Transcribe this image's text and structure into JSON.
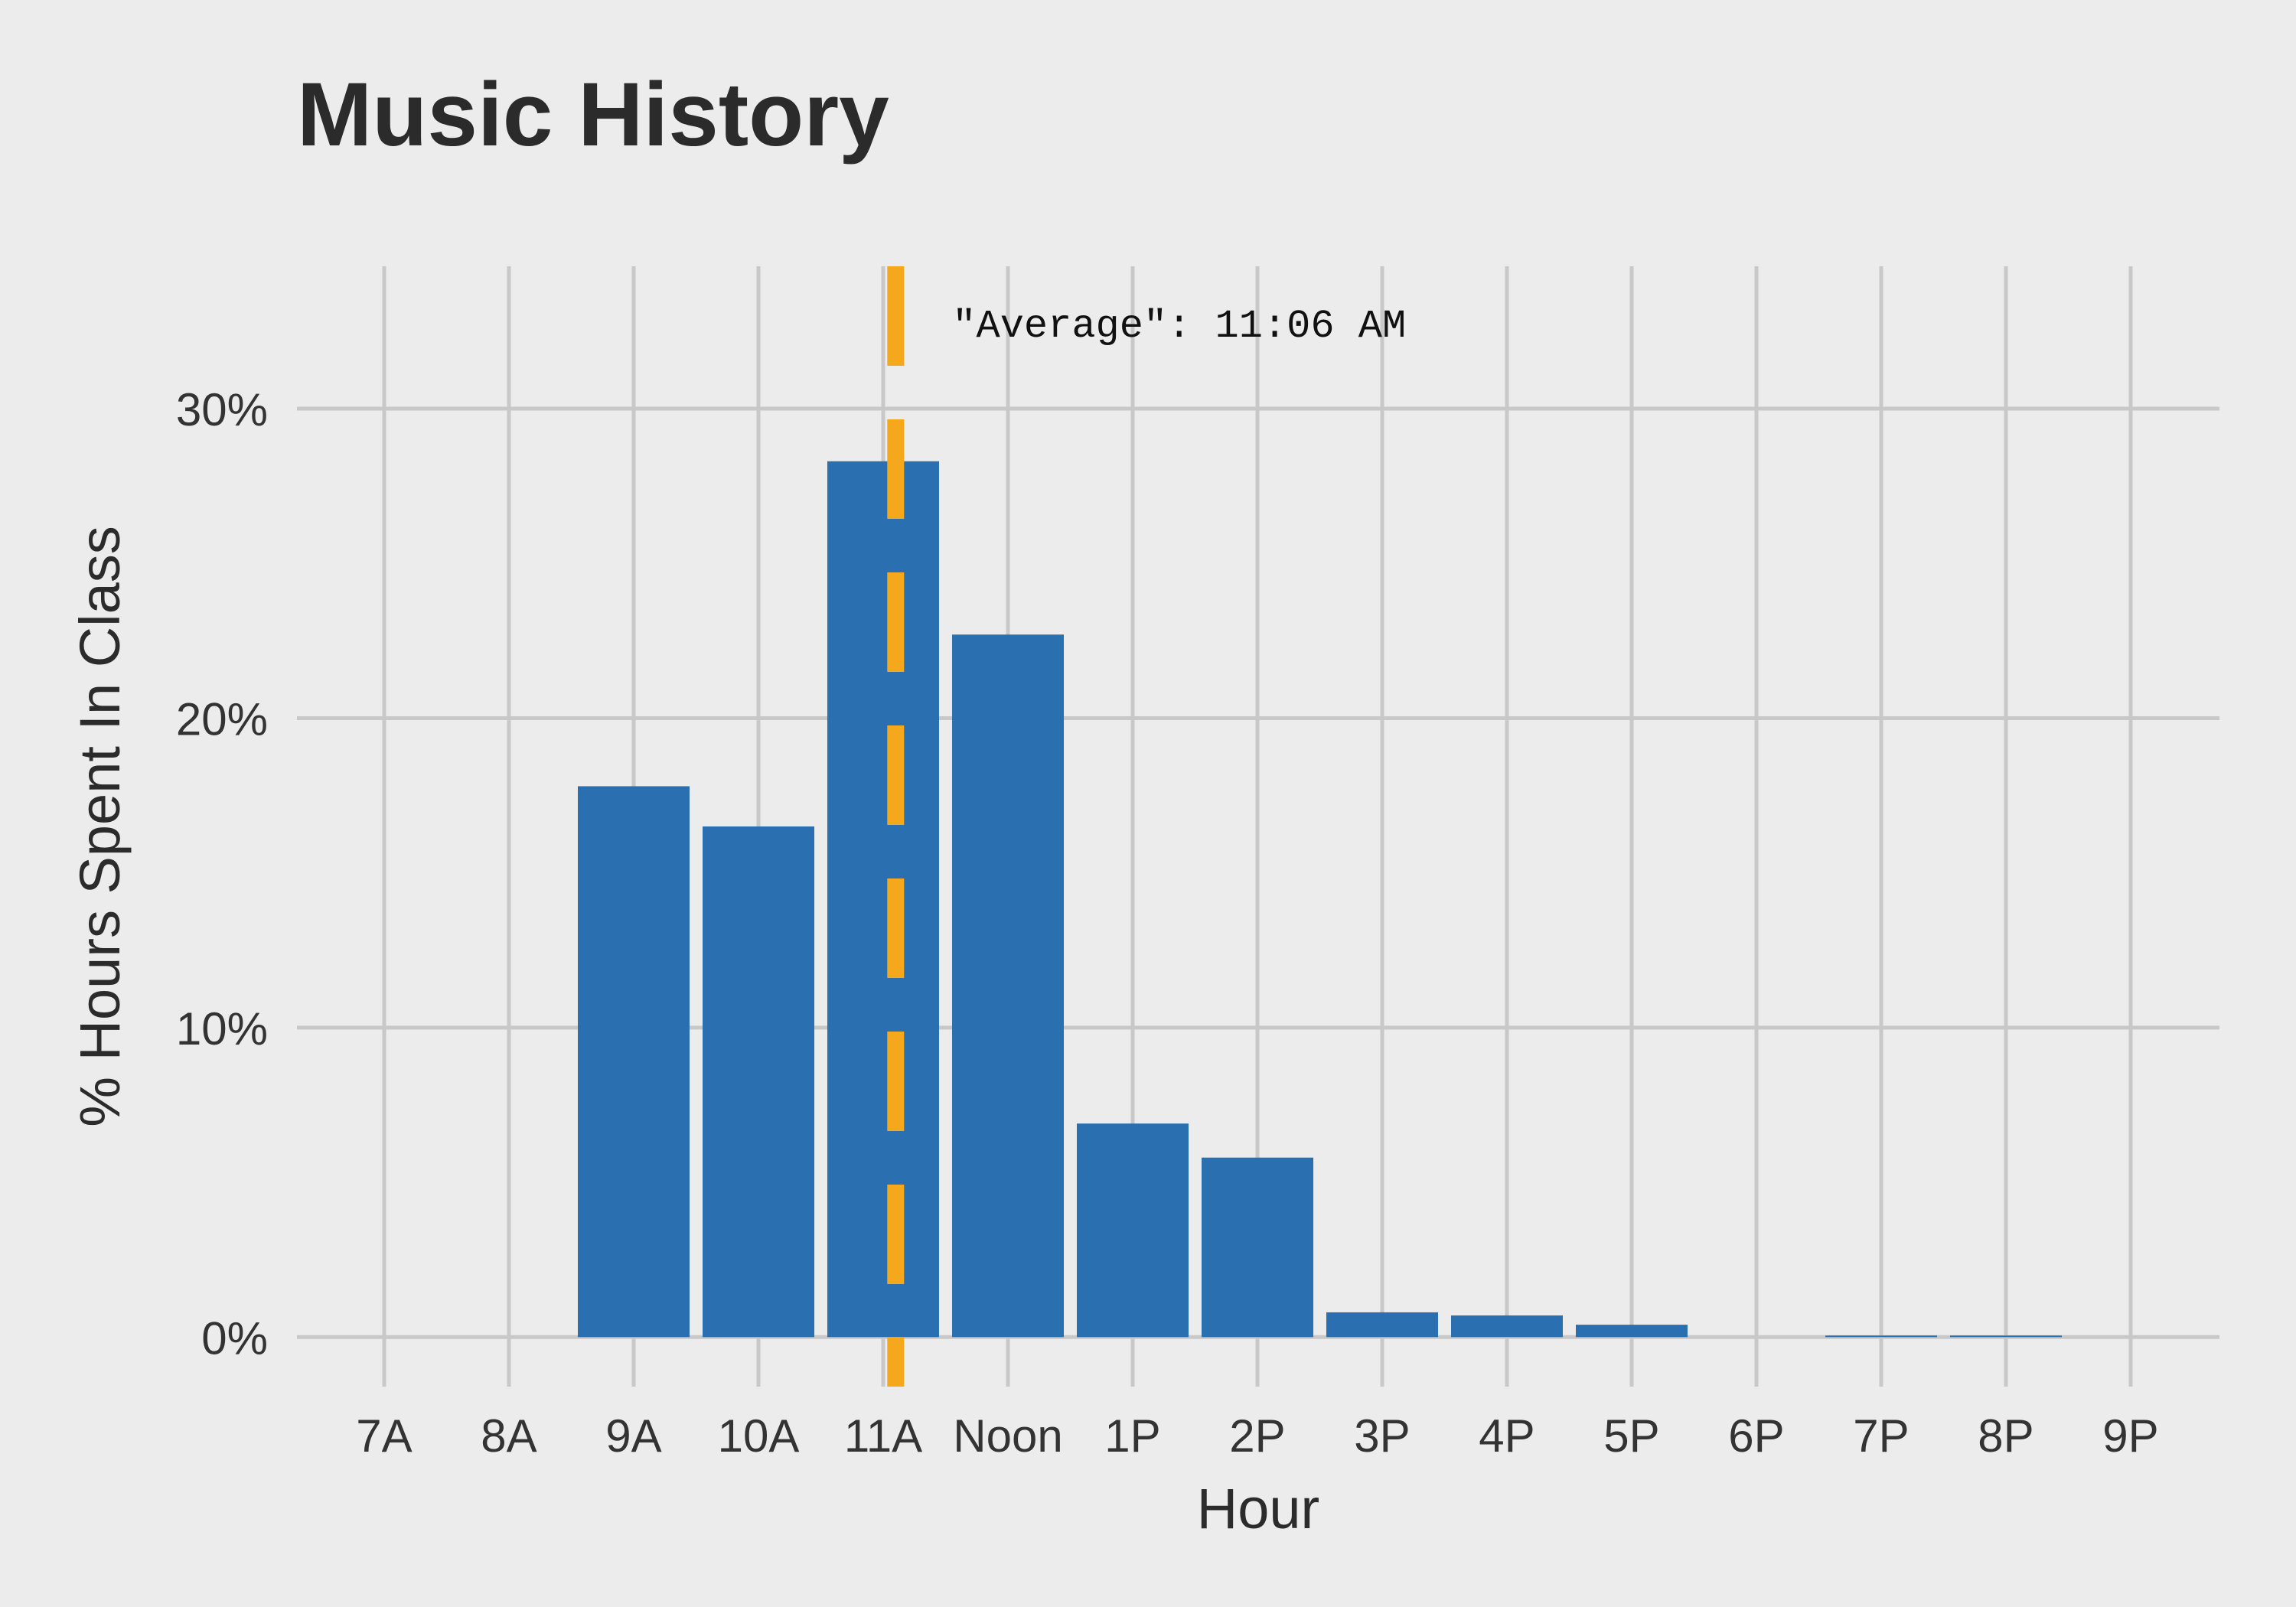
{
  "chart_data": {
    "type": "bar",
    "title": "Music History",
    "xlabel": "Hour",
    "ylabel": "% Hours Spent In Class",
    "categories": [
      "7A",
      "8A",
      "9A",
      "10A",
      "11A",
      "Noon",
      "1P",
      "2P",
      "3P",
      "4P",
      "5P",
      "6P",
      "7P",
      "8P",
      "9P"
    ],
    "values": [
      0,
      0,
      17.8,
      16.5,
      28.3,
      22.7,
      6.9,
      5.8,
      0.8,
      0.7,
      0.4,
      0,
      0.05,
      0.05,
      0
    ],
    "ylim": [
      -1.6,
      34.6
    ],
    "yticks": [
      0,
      10,
      20,
      30
    ],
    "ytick_labels": [
      "0%",
      "10%",
      "20%",
      "30%"
    ],
    "grid": true,
    "average_line": {
      "label": "\"Average\": 11:06 AM",
      "position": 4.1,
      "style": "dashed"
    },
    "colors": {
      "bar": "#2a6fb0",
      "average_line": "#f5a81c",
      "background": "#ececec",
      "grid": "#c8c8c8"
    }
  }
}
